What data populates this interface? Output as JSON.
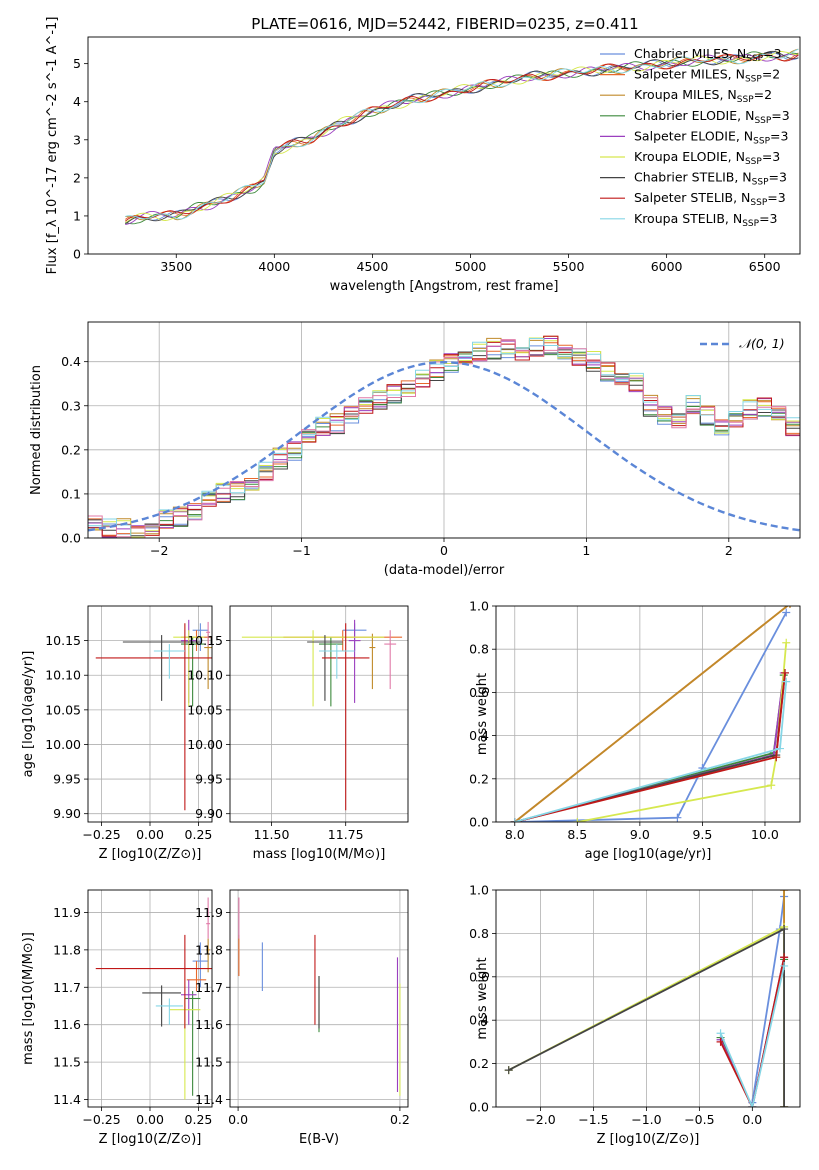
{
  "figure": {
    "title": "PLATE=0616, MJD=52442, FIBERID=0235, z=0.411"
  },
  "colors": {
    "Chabrier MILES": "#6a8fdd",
    "Salpeter MILES": "#e8692c",
    "Kroupa MILES": "#c08a2a",
    "Chabrier ELODIE": "#3d8a3d",
    "Salpeter ELODIE": "#9b3fbf",
    "Kroupa ELODIE": "#d6e84f",
    "Chabrier STELIB": "#444444",
    "Salpeter STELIB": "#c01818",
    "Kroupa STELIB": "#86d6e6",
    "extra_pink": "#e07aa8",
    "data": "#808080",
    "normal": "#5b86d6"
  },
  "chart_data": [
    {
      "id": "spectrum",
      "type": "line",
      "title": "PLATE=0616, MJD=52442, FIBERID=0235, z=0.411",
      "xlabel": "wavelength [Angstrom, rest frame]",
      "ylabel": "Flux [f_λ 10^-17 erg cm^-2 s^-1 A^-1]",
      "xlim": [
        3050,
        6680
      ],
      "ylim": [
        0,
        5.7
      ],
      "xticks": [
        3500,
        4000,
        4500,
        5000,
        5500,
        6000,
        6500
      ],
      "yticks": [
        0,
        1,
        2,
        3,
        4,
        5
      ],
      "grid": false,
      "legend_position": "top-right",
      "continuum_x": [
        3240,
        3300,
        3400,
        3500,
        3600,
        3700,
        3800,
        3900,
        3950,
        4000,
        4100,
        4200,
        4300,
        4400,
        4500,
        4600,
        4700,
        4800,
        4900,
        5000,
        5100,
        5200,
        5300,
        5400,
        5500,
        5600,
        5700,
        5800,
        5900,
        6000,
        6100,
        6200,
        6300,
        6400,
        6500,
        6600,
        6680
      ],
      "continuum_y": [
        0.85,
        0.95,
        1.0,
        1.0,
        1.2,
        1.35,
        1.55,
        1.75,
        1.95,
        2.7,
        2.9,
        3.05,
        3.35,
        3.55,
        3.75,
        3.9,
        4.05,
        4.15,
        4.25,
        4.35,
        4.45,
        4.55,
        4.65,
        4.7,
        4.75,
        4.8,
        4.85,
        4.9,
        4.95,
        5.0,
        5.05,
        5.1,
        5.1,
        5.15,
        5.2,
        5.2,
        5.25
      ],
      "legend": [
        {
          "label": "Chabrier MILES, N",
          "sub": "SSP",
          "tail": "=3"
        },
        {
          "label": "Salpeter MILES, N",
          "sub": "SSP",
          "tail": "=2"
        },
        {
          "label": "Kroupa MILES, N",
          "sub": "SSP",
          "tail": "=2"
        },
        {
          "label": "Chabrier ELODIE, N",
          "sub": "SSP",
          "tail": "=3"
        },
        {
          "label": "Salpeter ELODIE, N",
          "sub": "SSP",
          "tail": "=3"
        },
        {
          "label": "Kroupa ELODIE, N",
          "sub": "SSP",
          "tail": "=3"
        },
        {
          "label": "Chabrier STELIB, N",
          "sub": "SSP",
          "tail": "=3"
        },
        {
          "label": "Salpeter STELIB, N",
          "sub": "SSP",
          "tail": "=3"
        },
        {
          "label": "Kroupa STELIB, N",
          "sub": "SSP",
          "tail": "=3"
        }
      ]
    },
    {
      "id": "residuals",
      "type": "bar",
      "xlabel": "(data-model)/error",
      "ylabel": "Normed distribution",
      "xlim": [
        -2.5,
        2.5
      ],
      "ylim": [
        0,
        0.49
      ],
      "xticks": [
        -2,
        -1,
        0,
        1,
        2
      ],
      "yticks": [
        0.0,
        0.1,
        0.2,
        0.3,
        0.4
      ],
      "grid": true,
      "legend_position": "top-right",
      "legend": [
        {
          "label": "𝒩(0, 1)"
        }
      ],
      "bin_width": 0.1,
      "base_hist": [
        0.03,
        0.02,
        0.02,
        0.01,
        0.02,
        0.04,
        0.05,
        0.06,
        0.09,
        0.1,
        0.11,
        0.12,
        0.15,
        0.18,
        0.2,
        0.23,
        0.25,
        0.26,
        0.28,
        0.3,
        0.31,
        0.33,
        0.34,
        0.36,
        0.38,
        0.4,
        0.41,
        0.42,
        0.43,
        0.43,
        0.42,
        0.43,
        0.44,
        0.42,
        0.41,
        0.4,
        0.38,
        0.36,
        0.35,
        0.3,
        0.28,
        0.27,
        0.3,
        0.28,
        0.25,
        0.27,
        0.29,
        0.3,
        0.28,
        0.25,
        0.22,
        0.2,
        0.19,
        0.18,
        0.17,
        0.15,
        0.13,
        0.11,
        0.09,
        0.08,
        0.1,
        0.11,
        0.1,
        0.09,
        0.08,
        0.07,
        0.07,
        0.06,
        0.06,
        0.05,
        0.06,
        0.06,
        0.05,
        0.05,
        0.04,
        0.04,
        0.03,
        0.03,
        0.03,
        0.03
      ]
    },
    {
      "id": "age-vs-Z",
      "type": "scatter",
      "xlabel": "Z [log10(Z/Z⊙)]",
      "ylabel": "age  [log10(age/yr)]",
      "xlim": [
        -0.32,
        0.32
      ],
      "ylim": [
        9.888,
        10.2
      ],
      "xticks": [
        -0.25,
        0.0,
        0.25
      ],
      "yticks": [
        9.9,
        9.95,
        10.0,
        10.05,
        10.1,
        10.15
      ],
      "grid": true,
      "points": [
        {
          "s": "Chabrier MILES",
          "x": 0.26,
          "y": 10.165,
          "xerr": 0.04,
          "yerr": [
            0.03,
            0.01
          ]
        },
        {
          "s": "Salpeter MILES",
          "x": 0.24,
          "y": 10.155,
          "xerr": 0.08,
          "yerr": [
            0.02,
            0.01
          ]
        },
        {
          "s": "Kroupa MILES",
          "x": 0.3,
          "y": 10.14,
          "xerr": 0.02,
          "yerr": [
            0.06,
            0.02
          ]
        },
        {
          "s": "Chabrier ELODIE",
          "x": 0.22,
          "y": 10.145,
          "xerr": 0.06,
          "yerr": [
            0.09,
            0.01
          ]
        },
        {
          "s": "Salpeter ELODIE",
          "x": 0.2,
          "y": 10.15,
          "xerr": 0.04,
          "yerr": [
            0.09,
            0.03
          ]
        },
        {
          "s": "Kroupa ELODIE",
          "x": 0.2,
          "y": 10.155,
          "xerr": 0.08,
          "yerr": [
            0.1,
            0.01
          ]
        },
        {
          "s": "Chabrier STELIB",
          "x": 0.06,
          "y": 10.148,
          "xerr": 0.2,
          "yerr": [
            0.085,
            0.01
          ]
        },
        {
          "s": "Salpeter STELIB",
          "x": 0.18,
          "y": 10.125,
          "xerr": 0.46,
          "yerr": [
            0.22,
            0.05
          ]
        },
        {
          "s": "Kroupa STELIB",
          "x": 0.1,
          "y": 10.135,
          "xerr": 0.08,
          "yerr": [
            0.04,
            0.01
          ]
        },
        {
          "s": "extra_pink",
          "x": 0.3,
          "y": 10.162,
          "xerr": 0.01,
          "yerr": [
            0.02,
            0.015
          ]
        }
      ]
    },
    {
      "id": "age-vs-mass",
      "type": "scatter",
      "xlabel": "mass [log10(M/M⊙)]",
      "ylabel": "",
      "xlim": [
        11.36,
        11.96
      ],
      "ylim": [
        9.888,
        10.2
      ],
      "xticks": [
        11.5,
        11.75
      ],
      "yticks": [
        9.9,
        9.95,
        10.0,
        10.05,
        10.1,
        10.15
      ],
      "grid": true,
      "points": [
        {
          "s": "Chabrier MILES",
          "x": 11.78,
          "y": 10.165,
          "xerr": 0.04,
          "yerr": [
            0.03,
            0.01
          ]
        },
        {
          "s": "Salpeter MILES",
          "x": 11.74,
          "y": 10.155,
          "xerr": 0.2,
          "yerr": [
            0.02,
            0.01
          ]
        },
        {
          "s": "Kroupa MILES",
          "x": 11.84,
          "y": 10.14,
          "xerr": 0.01,
          "yerr": [
            0.06,
            0.02
          ]
        },
        {
          "s": "Chabrier ELODIE",
          "x": 11.7,
          "y": 10.145,
          "xerr": 0.04,
          "yerr": [
            0.09,
            0.01
          ]
        },
        {
          "s": "Salpeter ELODIE",
          "x": 11.78,
          "y": 10.15,
          "xerr": 0.02,
          "yerr": [
            0.09,
            0.03
          ]
        },
        {
          "s": "Kroupa ELODIE",
          "x": 11.64,
          "y": 10.155,
          "xerr": 0.24,
          "yerr": [
            0.1,
            0.01
          ]
        },
        {
          "s": "Chabrier STELIB",
          "x": 11.68,
          "y": 10.148,
          "xerr": 0.06,
          "yerr": [
            0.085,
            0.01
          ]
        },
        {
          "s": "Salpeter STELIB",
          "x": 11.75,
          "y": 10.125,
          "xerr": 0.08,
          "yerr": [
            0.22,
            0.05
          ]
        },
        {
          "s": "Kroupa STELIB",
          "x": 11.72,
          "y": 10.135,
          "xerr": 0.06,
          "yerr": [
            0.04,
            0.01
          ]
        },
        {
          "s": "extra_pink",
          "x": 11.9,
          "y": 10.145,
          "xerr": 0.02,
          "yerr": [
            0.065,
            0.02
          ]
        }
      ]
    },
    {
      "id": "weight-vs-age",
      "type": "line",
      "xlabel": "age  [log10(age/yr)]",
      "ylabel": "mass weight",
      "xlim": [
        7.85,
        10.28
      ],
      "ylim": [
        0.0,
        1.0
      ],
      "xticks": [
        8.0,
        8.5,
        9.0,
        9.5,
        10.0
      ],
      "yticks": [
        0.0,
        0.2,
        0.4,
        0.6,
        0.8,
        1.0
      ],
      "grid": true,
      "series": [
        {
          "s": "Chabrier MILES",
          "x": [
            8.0,
            9.3,
            9.5,
            10.17
          ],
          "y": [
            0.0,
            0.02,
            0.25,
            0.97
          ]
        },
        {
          "s": "Salpeter MILES",
          "x": [
            8.0,
            10.2
          ],
          "y": [
            0.0,
            1.01
          ]
        },
        {
          "s": "Kroupa MILES",
          "x": [
            8.0,
            10.2
          ],
          "y": [
            0.0,
            1.01
          ]
        },
        {
          "s": "Chabrier ELODIE",
          "x": [
            8.0,
            10.07,
            10.15
          ],
          "y": [
            0.0,
            0.32,
            0.68
          ]
        },
        {
          "s": "Salpeter ELODIE",
          "x": [
            8.0,
            10.07,
            10.15
          ],
          "y": [
            0.0,
            0.31,
            0.69
          ]
        },
        {
          "s": "Kroupa ELODIE",
          "x": [
            8.5,
            10.05,
            10.09,
            10.17
          ],
          "y": [
            0.0,
            0.17,
            0.3,
            0.83
          ]
        },
        {
          "s": "Chabrier STELIB",
          "x": [
            8.0,
            10.09,
            10.16
          ],
          "y": [
            0.0,
            0.31,
            0.69
          ]
        },
        {
          "s": "Salpeter STELIB",
          "x": [
            8.0,
            10.09,
            10.16
          ],
          "y": [
            0.0,
            0.3,
            0.69
          ]
        },
        {
          "s": "Kroupa STELIB",
          "x": [
            8.0,
            10.12,
            10.17
          ],
          "y": [
            0.0,
            0.34,
            0.65
          ]
        }
      ]
    },
    {
      "id": "mass-vs-Z",
      "type": "scatter",
      "xlabel": "Z [log10(Z/Z⊙)]",
      "ylabel": "mass [log10(M/M⊙)]",
      "xlim": [
        -0.32,
        0.32
      ],
      "ylim": [
        11.38,
        11.96
      ],
      "xticks": [
        -0.25,
        0.0,
        0.25
      ],
      "yticks": [
        11.4,
        11.5,
        11.6,
        11.7,
        11.8,
        11.9
      ],
      "grid": true,
      "points": [
        {
          "s": "Chabrier MILES",
          "x": 0.26,
          "y": 11.77,
          "xerr": 0.04,
          "yerr": [
            0.07,
            0.05
          ]
        },
        {
          "s": "Salpeter MILES",
          "x": 0.24,
          "y": 11.72,
          "xerr": 0.05,
          "yerr": [
            0.03,
            0.05
          ]
        },
        {
          "s": "Kroupa MILES",
          "x": 0.3,
          "y": 11.8,
          "xerr": 0.01,
          "yerr": [
            0.06,
            0.03
          ]
        },
        {
          "s": "Chabrier ELODIE",
          "x": 0.22,
          "y": 11.67,
          "xerr": 0.04,
          "yerr": [
            0.26,
            0.02
          ]
        },
        {
          "s": "Salpeter ELODIE",
          "x": 0.2,
          "y": 11.68,
          "xerr": 0.04,
          "yerr": [
            0.08,
            0.04
          ]
        },
        {
          "s": "Kroupa ELODIE",
          "x": 0.18,
          "y": 11.64,
          "xerr": 0.08,
          "yerr": [
            0.24,
            0.03
          ]
        },
        {
          "s": "Chabrier STELIB",
          "x": 0.06,
          "y": 11.685,
          "xerr": 0.1,
          "yerr": [
            0.09,
            0.02
          ]
        },
        {
          "s": "Salpeter STELIB",
          "x": 0.18,
          "y": 11.75,
          "xerr": 0.46,
          "yerr": [
            0.16,
            0.09
          ]
        },
        {
          "s": "Kroupa STELIB",
          "x": 0.1,
          "y": 11.65,
          "xerr": 0.07,
          "yerr": [
            0.05,
            0.02
          ]
        },
        {
          "s": "extra_pink",
          "x": 0.3,
          "y": 11.87,
          "xerr": 0.01,
          "yerr": [
            0.04,
            0.07
          ]
        }
      ]
    },
    {
      "id": "mass-vs-EBV",
      "type": "scatter",
      "xlabel": "E(B-V)",
      "ylabel": "",
      "xlim": [
        -0.01,
        0.21
      ],
      "ylim": [
        11.38,
        11.96
      ],
      "xticks": [
        0.0,
        0.2
      ],
      "yticks": [
        11.4,
        11.5,
        11.6,
        11.7,
        11.8,
        11.9
      ],
      "grid": true,
      "points": [
        {
          "s": "Chabrier MILES",
          "x": 0.03,
          "y": 11.76,
          "xerr": 0.0,
          "yerr": [
            0.07,
            0.06
          ]
        },
        {
          "s": "Salpeter MILES",
          "x": 0.001,
          "y": 11.79,
          "xerr": 0.0,
          "yerr": [
            0.06,
            0.05
          ]
        },
        {
          "s": "Chabrier ELODIE",
          "x": 0.1,
          "y": 11.66,
          "xerr": 0.0,
          "yerr": [
            0.08,
            0.07
          ]
        },
        {
          "s": "Salpeter ELODIE",
          "x": 0.197,
          "y": 11.6,
          "xerr": 0.0,
          "yerr": [
            0.18,
            0.18
          ]
        },
        {
          "s": "Kroupa ELODIE",
          "x": 0.2,
          "y": 11.55,
          "xerr": 0.0,
          "yerr": [
            0.14,
            0.16
          ]
        },
        {
          "s": "Chabrier STELIB",
          "x": 0.1,
          "y": 11.66,
          "xerr": 0.0,
          "yerr": [
            0.07,
            0.07
          ]
        },
        {
          "s": "Salpeter STELIB",
          "x": 0.095,
          "y": 11.72,
          "xerr": 0.0,
          "yerr": [
            0.12,
            0.12
          ]
        },
        {
          "s": "extra_pink",
          "x": 0.001,
          "y": 11.87,
          "xerr": 0.0,
          "yerr": [
            0.04,
            0.07
          ]
        }
      ]
    },
    {
      "id": "weight-vs-Z",
      "type": "line",
      "xlabel": "Z [log10(Z/Z⊙)]",
      "ylabel": "mass weight",
      "xlim": [
        -2.42,
        0.45
      ],
      "ylim": [
        0.0,
        1.0
      ],
      "xticks": [
        -2.0,
        -1.5,
        -1.0,
        -0.5,
        0.0
      ],
      "yticks": [
        0.0,
        0.2,
        0.4,
        0.6,
        0.8,
        1.0
      ],
      "grid": true,
      "series": [
        {
          "s": "Chabrier MILES",
          "x": [
            0.0,
            0.26,
            0.3
          ],
          "y": [
            0.02,
            0.82,
            0.97
          ]
        },
        {
          "s": "Salpeter MILES",
          "x": [
            0.3,
            0.3
          ],
          "y": [
            0.0,
            1.0
          ]
        },
        {
          "s": "Kroupa MILES",
          "x": [
            0.3,
            0.3
          ],
          "y": [
            0.0,
            1.0
          ]
        },
        {
          "s": "Chabrier ELODIE",
          "x": [
            -0.3,
            0.0,
            0.3,
            0.3
          ],
          "y": [
            0.32,
            0.0,
            0.68,
            0.0
          ]
        },
        {
          "s": "Salpeter ELODIE",
          "x": [
            -0.3,
            0.0,
            0.3,
            0.3
          ],
          "y": [
            0.31,
            0.0,
            0.69,
            0.0
          ]
        },
        {
          "s": "Kroupa ELODIE",
          "x": [
            -2.3,
            0.3,
            0.3
          ],
          "y": [
            0.17,
            0.83,
            0.0
          ]
        },
        {
          "s": "Chabrier STELIB",
          "x": [
            -2.3,
            0.3,
            0.3
          ],
          "y": [
            0.17,
            0.82,
            0.0
          ]
        },
        {
          "s": "Salpeter STELIB",
          "x": [
            -0.3,
            0.0,
            0.3
          ],
          "y": [
            0.3,
            0.0,
            0.69
          ]
        },
        {
          "s": "Kroupa STELIB",
          "x": [
            -0.3,
            0.0,
            0.3
          ],
          "y": [
            0.34,
            0.0,
            0.65
          ]
        }
      ]
    }
  ]
}
